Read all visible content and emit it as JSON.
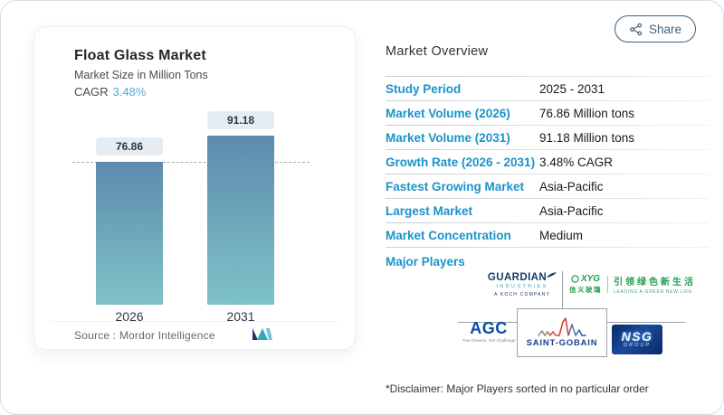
{
  "chart_card": {
    "title": "Float Glass Market",
    "subtitle": "Market Size in Million Tons",
    "cagr_label": "CAGR",
    "cagr_value": "3.48%",
    "source_label": "Source :",
    "source_name": "Mordor Intelligence",
    "logo_icon": "mordor-intelligence-logo"
  },
  "chart_data": {
    "type": "bar",
    "title": "Float Glass Market",
    "ylabel": "Market Size in Million Tons",
    "cagr_pct": 3.48,
    "categories": [
      "2026",
      "2031"
    ],
    "values": [
      76.86,
      91.18
    ],
    "value_labels": [
      "76.86",
      "91.18"
    ],
    "ylim": [
      0,
      93
    ],
    "grid": "off",
    "dash_reference_value": 76.86,
    "bar_gradient": [
      "#5d8bae",
      "#7fc2c7"
    ]
  },
  "share": {
    "label": "Share",
    "icon": "share-icon"
  },
  "overview": {
    "heading": "Market Overview",
    "rows": [
      {
        "label": "Study Period",
        "value": "2025 - 2031"
      },
      {
        "label": "Market Volume (2026)",
        "value": "76.86 Million tons"
      },
      {
        "label": "Market Volume (2031)",
        "value": "91.18 Million tons"
      },
      {
        "label": "Growth Rate (2026 - 2031)",
        "value": "3.48% CAGR"
      },
      {
        "label": "Fastest Growing Market",
        "value": "Asia-Pacific"
      },
      {
        "label": "Largest Market",
        "value": "Asia-Pacific"
      },
      {
        "label": "Market Concentration",
        "value": "Medium"
      }
    ],
    "major_players_label": "Major Players",
    "disclaimer": "*Disclaimer: Major Players sorted in no particular order"
  },
  "players": {
    "guardian": {
      "name": "GUARDIAN",
      "division": "INDUSTRIES",
      "tagline": "A KOCH COMPANY"
    },
    "xyg": {
      "name": "XYG",
      "name_cn": "信义玻璃",
      "slogan_cn": "引领绿色新生活",
      "slogan_en": "LEADING A GREEN NEW LIFE"
    },
    "agc": {
      "name": "AGC",
      "tagline": "Your Dreams, Our Challenge"
    },
    "saint_gobain": {
      "name": "SAINT-GOBAIN"
    },
    "nsg": {
      "name": "NSG",
      "sub": "GROUP"
    }
  },
  "colors": {
    "accent_blue": "#1b93c9",
    "cagr_value_blue": "#58a9d7",
    "share_outline": "#40607c",
    "bar_top": "#5d8bae",
    "bar_bottom": "#7fc2c7",
    "chip_bg": "#e5edf2",
    "guardian_navy": "#173a66",
    "xyg_green": "#1f9e50",
    "agc_blue": "#0a4ea0",
    "saint_gobain_navy": "#1d3f8f",
    "nsg_navy": "#0c2a66"
  }
}
